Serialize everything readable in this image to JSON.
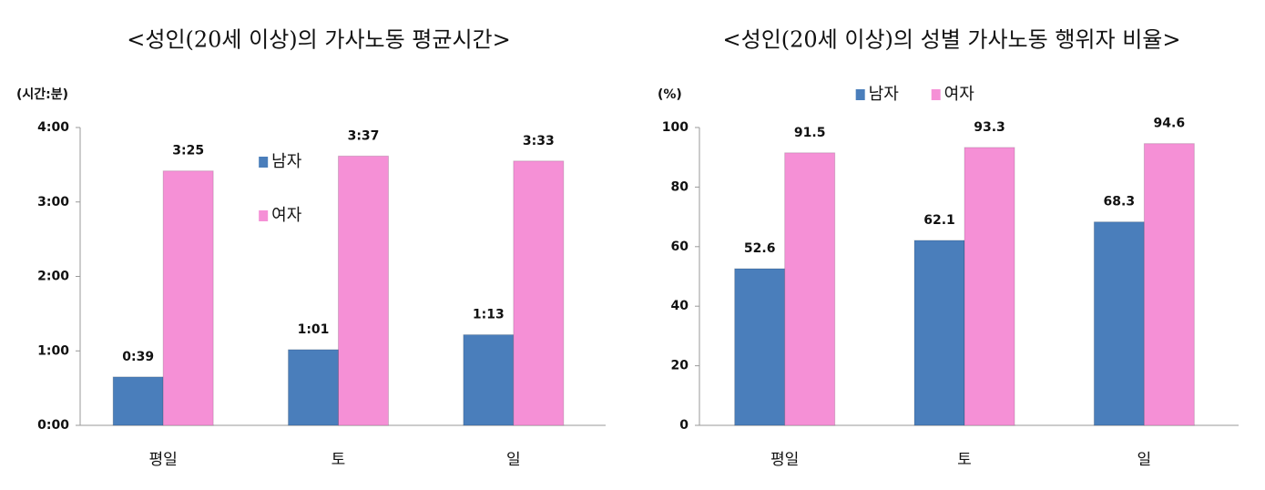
{
  "chart_data": [
    {
      "type": "bar",
      "title": "<성인(20세 이상)의 가사노동 평균시간>",
      "y_label": "(시간:분)",
      "categories": [
        "평일",
        "토",
        "일"
      ],
      "series": [
        {
          "name": "남자",
          "color": "#4a7ebb",
          "values": [
            39,
            61,
            73
          ],
          "value_labels": [
            "0:39",
            "1:01",
            "1:13"
          ]
        },
        {
          "name": "여자",
          "color": "#f590d6",
          "values": [
            205,
            217,
            213
          ],
          "value_labels": [
            "3:25",
            "3:37",
            "3:33"
          ]
        }
      ],
      "ylim": [
        0,
        240
      ],
      "yticks": [
        {
          "value": 0,
          "label": "0:00"
        },
        {
          "value": 60,
          "label": "1:00"
        },
        {
          "value": 120,
          "label": "2:00"
        },
        {
          "value": 180,
          "label": "3:00"
        },
        {
          "value": 240,
          "label": "4:00"
        }
      ],
      "grid": false,
      "legend": "center"
    },
    {
      "type": "bar",
      "title": "<성인(20세 이상)의 성별 가사노동 행위자 비율>",
      "y_label": "(%)",
      "categories": [
        "평일",
        "토",
        "일"
      ],
      "series": [
        {
          "name": "남자",
          "color": "#4a7ebb",
          "values": [
            52.6,
            62.1,
            68.3
          ]
        },
        {
          "name": "여자",
          "color": "#f590d6",
          "values": [
            91.5,
            93.3,
            94.6
          ]
        }
      ],
      "ylim": [
        0,
        100
      ],
      "yticks": [
        0,
        20,
        40,
        60,
        80,
        100
      ],
      "grid": false,
      "legend": "top"
    }
  ]
}
